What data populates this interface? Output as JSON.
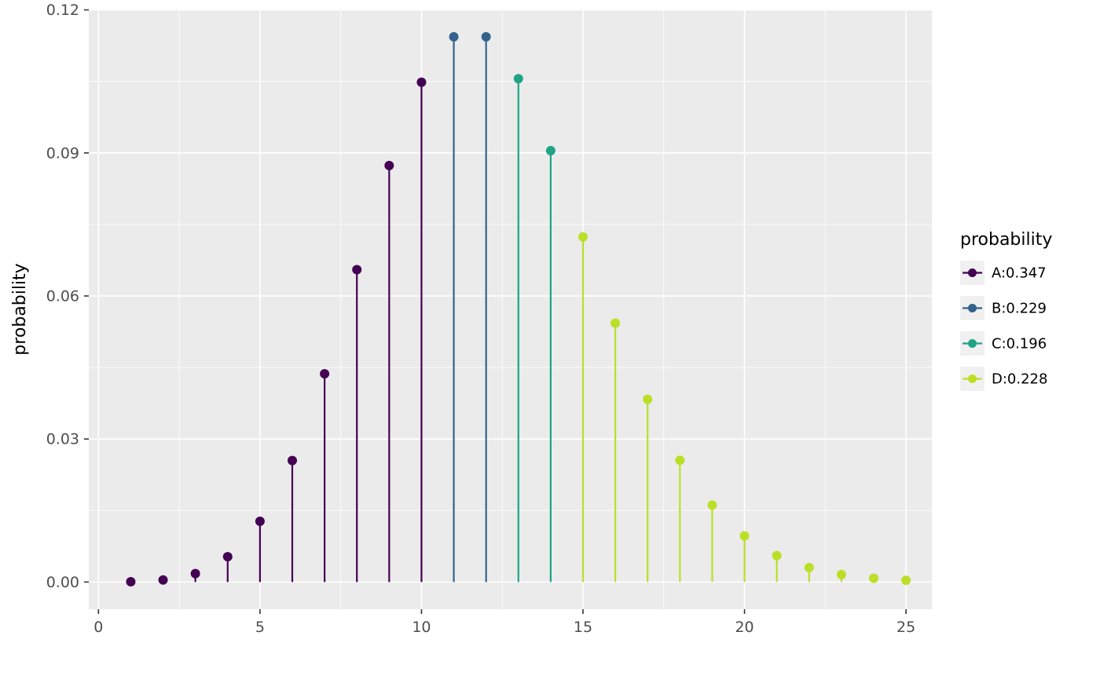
{
  "chart_data": {
    "type": "scatter",
    "style": "lollipop-stem",
    "title": "",
    "xlabel": "",
    "ylabel": "probability",
    "legend_title": "probability",
    "legend_position": "right",
    "grid": true,
    "x": [
      1,
      2,
      3,
      4,
      5,
      6,
      7,
      8,
      9,
      10,
      11,
      12,
      13,
      14,
      15,
      16,
      17,
      18,
      19,
      20,
      21,
      22,
      23,
      24,
      25
    ],
    "y": [
      7e-05,
      0.00044,
      0.00177,
      0.00531,
      0.01274,
      0.02548,
      0.04368,
      0.06552,
      0.08736,
      0.10483,
      0.11436,
      0.11436,
      0.10557,
      0.09049,
      0.07239,
      0.05429,
      0.03832,
      0.02555,
      0.01614,
      0.00968,
      0.00553,
      0.00302,
      0.00157,
      0.00079,
      0.00038
    ],
    "group": [
      "A",
      "A",
      "A",
      "A",
      "A",
      "A",
      "A",
      "A",
      "A",
      "A",
      "B",
      "B",
      "C",
      "C",
      "D",
      "D",
      "D",
      "D",
      "D",
      "D",
      "D",
      "D",
      "D",
      "D",
      "D"
    ],
    "colors": {
      "A": "#440154",
      "B": "#33638D",
      "C": "#20A386",
      "D": "#BBDF27"
    },
    "legend_entries": [
      {
        "label": "A:0.347",
        "color": "#440154"
      },
      {
        "label": "B:0.229",
        "color": "#33638D"
      },
      {
        "label": "C:0.196",
        "color": "#20A386"
      },
      {
        "label": "D:0.228",
        "color": "#BBDF27"
      }
    ],
    "xticks": [
      0,
      5,
      10,
      15,
      20,
      25
    ],
    "xtick_labels": [
      "0",
      "5",
      "10",
      "15",
      "20",
      "25"
    ],
    "yticks": [
      0,
      0.03,
      0.06,
      0.09,
      0.12
    ],
    "ytick_labels": [
      "0.00",
      "0.03",
      "0.06",
      "0.09",
      "0.12"
    ],
    "minor_xticks": [
      2.5,
      7.5,
      12.5,
      17.5,
      22.5
    ],
    "minor_yticks": [
      0.015,
      0.045,
      0.075,
      0.105
    ],
    "xlim": [
      -0.3,
      25.8
    ],
    "ylim": [
      -0.0057,
      0.1201
    ],
    "panel_bg": "#EBEBEB",
    "grid_color": "#FFFFFF",
    "axis_text_color": "#4D4D4D",
    "tick_mark_color": "#333333",
    "legend_key_bg": "#F0F0F0"
  }
}
